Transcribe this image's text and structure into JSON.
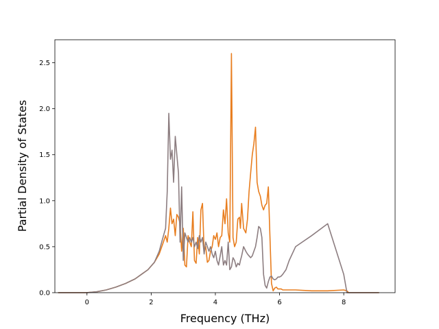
{
  "chart_data": {
    "type": "line",
    "title": "",
    "xlabel": "Frequency (THz)",
    "ylabel": "Partial Density of States",
    "xlim": [
      -1.0,
      9.6
    ],
    "ylim": [
      0.0,
      2.75
    ],
    "xticks": [
      0,
      2,
      4,
      6,
      8
    ],
    "xtick_labels": [
      "0",
      "2",
      "4",
      "6",
      "8"
    ],
    "yticks": [
      0.0,
      0.5,
      1.0,
      1.5,
      2.0,
      2.5
    ],
    "ytick_labels": [
      "0.0",
      "0.5",
      "1.0",
      "1.5",
      "2.0",
      "2.5"
    ],
    "grid": false,
    "legend": "none",
    "series": [
      {
        "color": "#e87d1e",
        "x": [
          -0.9,
          0.0,
          0.3,
          0.6,
          0.9,
          1.2,
          1.5,
          1.7,
          1.9,
          2.1,
          2.25,
          2.35,
          2.45,
          2.5,
          2.55,
          2.6,
          2.65,
          2.7,
          2.75,
          2.8,
          2.85,
          2.9,
          2.95,
          3.0,
          3.05,
          3.1,
          3.15,
          3.2,
          3.25,
          3.3,
          3.35,
          3.4,
          3.45,
          3.5,
          3.55,
          3.6,
          3.65,
          3.7,
          3.75,
          3.8,
          3.85,
          3.9,
          3.95,
          4.0,
          4.05,
          4.1,
          4.15,
          4.2,
          4.25,
          4.3,
          4.35,
          4.4,
          4.45,
          4.5,
          4.55,
          4.6,
          4.65,
          4.7,
          4.75,
          4.78,
          4.82,
          4.88,
          4.95,
          5.0,
          5.05,
          5.1,
          5.15,
          5.2,
          5.25,
          5.3,
          5.35,
          5.4,
          5.45,
          5.5,
          5.55,
          5.6,
          5.65,
          5.7,
          5.75,
          5.8,
          5.85,
          5.9,
          5.95,
          6.0,
          6.05,
          6.1,
          6.2,
          6.3,
          6.5,
          7.0,
          7.5,
          8.0,
          8.1,
          8.15,
          8.2,
          8.3,
          9.1
        ],
        "y": [
          0.0,
          0.0,
          0.01,
          0.03,
          0.06,
          0.1,
          0.15,
          0.2,
          0.25,
          0.33,
          0.42,
          0.52,
          0.62,
          0.55,
          0.7,
          0.92,
          0.75,
          0.8,
          0.62,
          0.85,
          0.82,
          0.75,
          0.45,
          0.7,
          0.3,
          0.28,
          0.62,
          0.55,
          0.5,
          0.88,
          0.35,
          0.32,
          0.6,
          0.42,
          0.9,
          0.97,
          0.45,
          0.5,
          0.33,
          0.35,
          0.45,
          0.5,
          0.62,
          0.58,
          0.65,
          0.5,
          0.6,
          0.62,
          0.9,
          0.75,
          1.02,
          0.65,
          0.55,
          2.6,
          0.6,
          0.5,
          0.55,
          0.8,
          0.82,
          0.7,
          0.97,
          0.7,
          0.65,
          0.8,
          1.1,
          1.3,
          1.5,
          1.62,
          1.8,
          1.2,
          1.1,
          1.05,
          0.95,
          0.9,
          0.95,
          0.97,
          1.15,
          0.62,
          0.1,
          0.02,
          0.05,
          0.06,
          0.04,
          0.04,
          0.04,
          0.03,
          0.03,
          0.03,
          0.03,
          0.02,
          0.02,
          0.03,
          0.02,
          0.0,
          0.0,
          0.0,
          0.0
        ]
      },
      {
        "color": "#8c7d80",
        "x": [
          -0.9,
          0.0,
          0.3,
          0.6,
          0.9,
          1.2,
          1.5,
          1.7,
          1.9,
          2.1,
          2.25,
          2.35,
          2.45,
          2.5,
          2.55,
          2.6,
          2.65,
          2.7,
          2.75,
          2.8,
          2.85,
          2.9,
          2.95,
          3.0,
          3.05,
          3.1,
          3.15,
          3.2,
          3.25,
          3.3,
          3.35,
          3.4,
          3.45,
          3.5,
          3.55,
          3.6,
          3.65,
          3.7,
          3.75,
          3.8,
          3.85,
          3.9,
          3.95,
          4.0,
          4.05,
          4.1,
          4.15,
          4.2,
          4.25,
          4.3,
          4.35,
          4.4,
          4.45,
          4.5,
          4.55,
          4.6,
          4.65,
          4.7,
          4.75,
          4.78,
          4.82,
          4.88,
          4.95,
          5.0,
          5.05,
          5.1,
          5.15,
          5.2,
          5.25,
          5.3,
          5.35,
          5.4,
          5.45,
          5.5,
          5.55,
          5.6,
          5.65,
          5.7,
          5.75,
          5.8,
          5.85,
          5.9,
          5.95,
          6.0,
          6.05,
          6.1,
          6.2,
          6.3,
          6.5,
          7.0,
          7.5,
          8.0,
          8.1,
          8.15,
          8.2,
          8.3,
          9.1
        ],
        "y": [
          0.0,
          0.0,
          0.01,
          0.03,
          0.06,
          0.1,
          0.15,
          0.2,
          0.25,
          0.33,
          0.45,
          0.58,
          0.7,
          1.1,
          1.95,
          1.45,
          1.55,
          1.2,
          1.7,
          1.5,
          1.3,
          0.55,
          1.15,
          0.35,
          0.65,
          0.6,
          0.55,
          0.6,
          0.55,
          0.6,
          0.5,
          0.55,
          0.48,
          0.62,
          0.55,
          0.6,
          0.42,
          0.55,
          0.5,
          0.45,
          0.5,
          0.42,
          0.38,
          0.45,
          0.35,
          0.3,
          0.4,
          0.5,
          0.3,
          0.35,
          0.3,
          0.55,
          0.25,
          0.28,
          0.38,
          0.35,
          0.28,
          0.32,
          0.3,
          0.35,
          0.4,
          0.5,
          0.45,
          0.42,
          0.4,
          0.38,
          0.4,
          0.45,
          0.5,
          0.6,
          0.72,
          0.7,
          0.6,
          0.2,
          0.08,
          0.05,
          0.12,
          0.17,
          0.18,
          0.15,
          0.14,
          0.15,
          0.17,
          0.17,
          0.18,
          0.2,
          0.25,
          0.35,
          0.5,
          0.62,
          0.75,
          0.2,
          0.0,
          0.0,
          0.0,
          0.0,
          0.0
        ]
      }
    ]
  }
}
